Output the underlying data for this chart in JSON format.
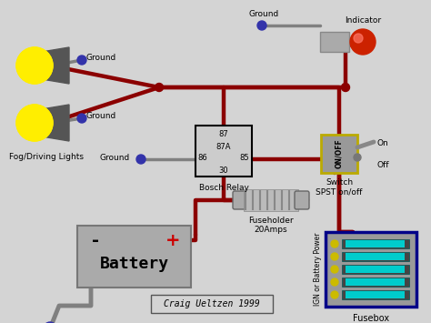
{
  "bg_color": "#d4d4d4",
  "wire_color": "#8b0000",
  "ground_wire_color": "#808080",
  "ground_dot_color": "#3333aa",
  "title": "Craig Ueltzen 1999",
  "label_fog": "Fog/Driving Lights",
  "label_battery": "Battery",
  "label_relay": "Bosch Relay",
  "label_fuseholder": "Fuseholder\n20Amps",
  "label_fusebox": "Fusebox",
  "label_indicator": "Indicator",
  "label_switch": "Switch\nSPST on/off",
  "label_ground": "Ground",
  "label_on": "On",
  "label_off": "Off",
  "label_ign": "IGN or Battery Power",
  "relay_pins": [
    "87",
    "87A",
    "85",
    "86",
    "30"
  ],
  "switch_label": "ON/OFF",
  "battery_minus": "-",
  "battery_plus": "+"
}
